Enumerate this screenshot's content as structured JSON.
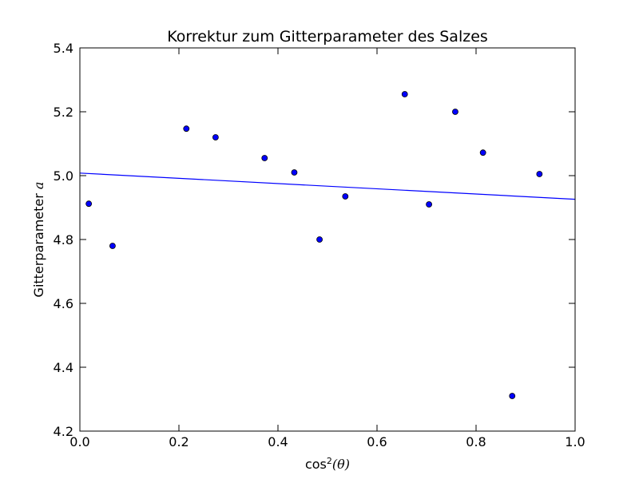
{
  "chart_data": {
    "type": "scatter",
    "title": "Korrektur zum Gitterparameter des Salzes",
    "xlabel": {
      "prefix": "cos",
      "sup": "2",
      "math": "(θ)"
    },
    "ylabel": {
      "text": "Gitterparameter ",
      "math": "a"
    },
    "xlim": [
      0.0,
      1.0
    ],
    "ylim": [
      4.2,
      5.4
    ],
    "xticks": [
      "0.0",
      "0.2",
      "0.4",
      "0.6",
      "0.8",
      "1.0"
    ],
    "yticks": [
      "4.2",
      "4.4",
      "4.6",
      "4.8",
      "5.0",
      "5.2",
      "5.4"
    ],
    "grid": false,
    "point_color": "#0000ff",
    "line_color": "#0000ff",
    "points": [
      {
        "x": 0.018,
        "y": 4.912
      },
      {
        "x": 0.066,
        "y": 4.78
      },
      {
        "x": 0.215,
        "y": 5.147
      },
      {
        "x": 0.274,
        "y": 5.12
      },
      {
        "x": 0.373,
        "y": 5.055
      },
      {
        "x": 0.433,
        "y": 5.01
      },
      {
        "x": 0.484,
        "y": 4.8
      },
      {
        "x": 0.536,
        "y": 4.935
      },
      {
        "x": 0.656,
        "y": 5.255
      },
      {
        "x": 0.705,
        "y": 4.91
      },
      {
        "x": 0.758,
        "y": 5.2
      },
      {
        "x": 0.814,
        "y": 5.072
      },
      {
        "x": 0.873,
        "y": 4.31
      },
      {
        "x": 0.928,
        "y": 5.005
      }
    ],
    "fit_line": {
      "x": [
        0.0,
        1.0
      ],
      "y": [
        5.008,
        4.926
      ]
    }
  }
}
